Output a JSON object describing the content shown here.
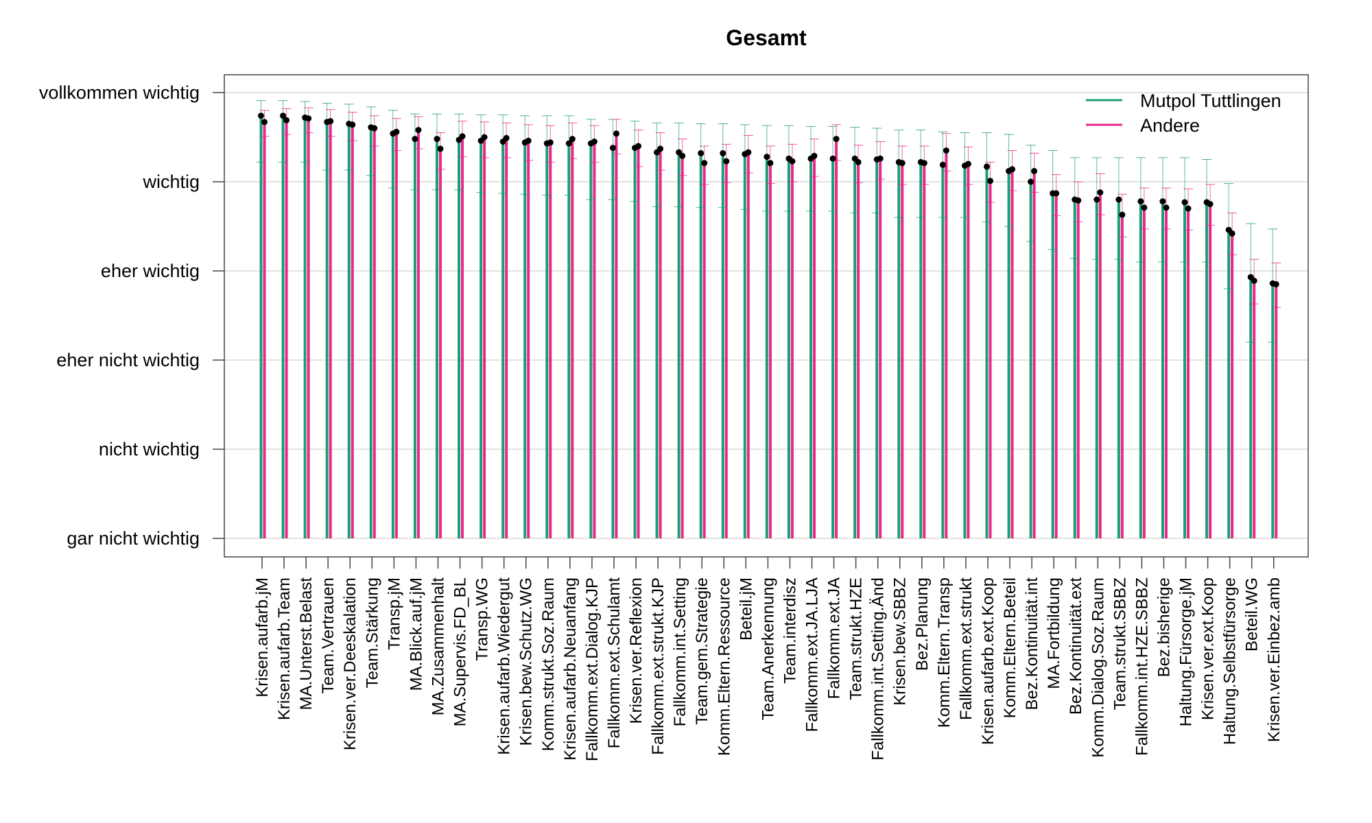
{
  "chart_data": {
    "type": "bar",
    "title": "Gesamt",
    "xlabel": "",
    "ylabel": "",
    "ylim": [
      0,
      5
    ],
    "y_tick_values": [
      0,
      1,
      2,
      3,
      4,
      5
    ],
    "y_tick_labels": [
      "gar nicht wichtig",
      "nicht wichtig",
      "eher nicht wichtig",
      "eher wichtig",
      "wichtig",
      "vollkommen wichtig"
    ],
    "grid": "horizontal",
    "legend_position": "top-right",
    "error_bars": true,
    "categories": [
      "Krisen.aufarb.jM",
      "Krisen.aufarb.Team",
      "MA.Unterst.Belast",
      "Team.Vertrauen",
      "Krisen.ver.Deeskalation",
      "Team.Stärkung",
      "Transp.jM",
      "MA.Blick.auf.jM",
      "MA.Zusammenhalt",
      "MA.Supervis.FD_BL",
      "Transp.WG",
      "Krisen.aufarb.Wiedergut",
      "Krisen.bew.Schutz.WG",
      "Komm.strukt.Soz.Raum",
      "Krisen.aufarb.Neuanfang",
      "Fallkomm.ext.Dialog.KJP",
      "Fallkomm.ext.Schulamt",
      "Krisen.ver.Reflexion",
      "Fallkomm.ext.strukt.KJP",
      "Fallkomm.int.Setting",
      "Team.gem.Strategie",
      "Komm.Eltern.Ressource",
      "Beteil.jM",
      "Team.Anerkennung",
      "Team.interdisz",
      "Fallkomm.ext.JA.LJA",
      "Fallkomm.ext.JA",
      "Team.strukt.HZE",
      "Fallkomm.int.Setting.Änd",
      "Krisen.bew.SBBZ",
      "Bez.Planung",
      "Komm.Eltern.Transp",
      "Fallkomm.ext.strukt",
      "Krisen.aufarb.ext.Koop",
      "Komm.Eltern.Beteil",
      "Bez.Kontinuität.int",
      "MA.Fortbildung",
      "Bez.Kontinuität.ext",
      "Komm.Dialog.Soz.Raum",
      "Team.strukt.SBBZ",
      "Fallkomm.int.HZE.SBBZ",
      "Bez.bisherige",
      "Haltung.Fürsorge.jM",
      "Krisen.ver.ext.Koop",
      "Haltung.Selbstfürsorge",
      "Beteil.WG",
      "Krisen.ver.Einbez.amb"
    ],
    "series": [
      {
        "name": "Mutpol Tuttlingen",
        "color": "#1b9e77",
        "values": [
          4.74,
          4.74,
          4.72,
          4.67,
          4.65,
          4.61,
          4.54,
          4.48,
          4.48,
          4.47,
          4.46,
          4.45,
          4.44,
          4.43,
          4.43,
          4.43,
          4.38,
          4.38,
          4.33,
          4.33,
          4.32,
          4.32,
          4.31,
          4.28,
          4.26,
          4.26,
          4.26,
          4.26,
          4.25,
          4.22,
          4.22,
          4.19,
          4.18,
          4.17,
          4.12,
          4.0,
          3.87,
          3.8,
          3.8,
          3.8,
          3.78,
          3.78,
          3.77,
          3.77,
          3.46,
          2.93,
          2.86
        ],
        "err_low": [
          4.22,
          4.22,
          4.22,
          4.13,
          4.13,
          4.07,
          3.93,
          3.91,
          3.91,
          3.91,
          3.88,
          3.87,
          3.86,
          3.85,
          3.85,
          3.8,
          3.8,
          3.78,
          3.72,
          3.72,
          3.71,
          3.71,
          3.69,
          3.67,
          3.67,
          3.67,
          3.67,
          3.65,
          3.65,
          3.6,
          3.6,
          3.6,
          3.6,
          3.55,
          3.5,
          3.33,
          3.24,
          3.14,
          3.13,
          3.13,
          3.1,
          3.1,
          3.1,
          3.1,
          2.8,
          2.2,
          2.2
        ],
        "err_high": [
          4.91,
          4.91,
          4.9,
          4.88,
          4.87,
          4.84,
          4.8,
          4.76,
          4.76,
          4.76,
          4.75,
          4.75,
          4.74,
          4.74,
          4.74,
          4.7,
          4.7,
          4.68,
          4.66,
          4.66,
          4.65,
          4.65,
          4.64,
          4.63,
          4.63,
          4.62,
          4.62,
          4.61,
          4.6,
          4.58,
          4.58,
          4.56,
          4.55,
          4.55,
          4.53,
          4.41,
          4.35,
          4.27,
          4.27,
          4.27,
          4.27,
          4.27,
          4.27,
          4.25,
          3.98,
          3.53,
          3.47
        ]
      },
      {
        "name": "Andere",
        "color": "#e7298a",
        "values": [
          4.67,
          4.69,
          4.71,
          4.68,
          4.64,
          4.6,
          4.56,
          4.58,
          4.37,
          4.51,
          4.5,
          4.49,
          4.46,
          4.44,
          4.48,
          4.45,
          4.54,
          4.4,
          4.37,
          4.29,
          4.21,
          4.23,
          4.33,
          4.21,
          4.23,
          4.29,
          4.48,
          4.22,
          4.26,
          4.21,
          4.21,
          4.35,
          4.2,
          4.01,
          4.14,
          4.12,
          3.87,
          3.79,
          3.88,
          3.63,
          3.71,
          3.71,
          3.7,
          3.75,
          3.42,
          2.89,
          2.85
        ],
        "err_low": [
          4.51,
          4.53,
          4.55,
          4.51,
          4.46,
          4.4,
          4.35,
          4.37,
          4.14,
          4.28,
          4.27,
          4.27,
          4.24,
          4.22,
          4.26,
          4.22,
          4.31,
          4.17,
          4.13,
          4.07,
          3.97,
          3.99,
          4.1,
          3.98,
          4.0,
          4.06,
          4.24,
          3.99,
          4.03,
          3.97,
          3.97,
          4.12,
          3.97,
          3.77,
          3.9,
          3.88,
          3.62,
          3.55,
          3.63,
          3.38,
          3.47,
          3.47,
          3.46,
          3.51,
          3.18,
          2.63,
          2.59
        ],
        "err_high": [
          4.8,
          4.82,
          4.83,
          4.81,
          4.78,
          4.74,
          4.71,
          4.73,
          4.55,
          4.68,
          4.67,
          4.66,
          4.64,
          4.63,
          4.66,
          4.63,
          4.7,
          4.58,
          4.55,
          4.48,
          4.4,
          4.42,
          4.52,
          4.4,
          4.42,
          4.48,
          4.64,
          4.41,
          4.45,
          4.4,
          4.4,
          4.54,
          4.39,
          4.22,
          4.35,
          4.32,
          4.08,
          4.0,
          4.09,
          3.86,
          3.93,
          3.93,
          3.92,
          3.97,
          3.65,
          3.13,
          3.09
        ]
      }
    ]
  }
}
